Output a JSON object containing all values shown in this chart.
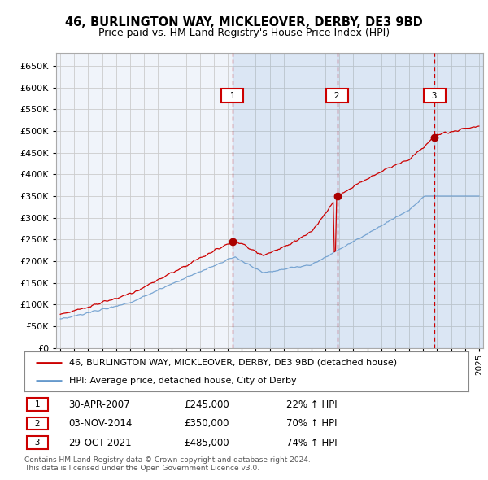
{
  "title": "46, BURLINGTON WAY, MICKLEOVER, DERBY, DE3 9BD",
  "subtitle": "Price paid vs. HM Land Registry's House Price Index (HPI)",
  "sale_color": "#cc0000",
  "hpi_color": "#6699cc",
  "vline_color": "#cc0000",
  "grid_color": "#cccccc",
  "bg_color": "#f0f4fa",
  "sale_dates": [
    "30-APR-2007",
    "03-NOV-2014",
    "29-OCT-2021"
  ],
  "sale_prices": [
    245000,
    350000,
    485000
  ],
  "sale_hpi_pct": [
    "22%",
    "70%",
    "74%"
  ],
  "legend_label_sale": "46, BURLINGTON WAY, MICKLEOVER, DERBY, DE3 9BD (detached house)",
  "legend_label_hpi": "HPI: Average price, detached house, City of Derby",
  "footer": "Contains HM Land Registry data © Crown copyright and database right 2024.\nThis data is licensed under the Open Government Licence v3.0.",
  "ylim": [
    0,
    680000
  ],
  "yticks": [
    0,
    50000,
    100000,
    150000,
    200000,
    250000,
    300000,
    350000,
    400000,
    450000,
    500000,
    550000,
    600000,
    650000
  ],
  "xlim_start": 1994.7,
  "xlim_end": 2025.3,
  "sale_date_nums": [
    2007.33,
    2014.84,
    2021.83
  ]
}
